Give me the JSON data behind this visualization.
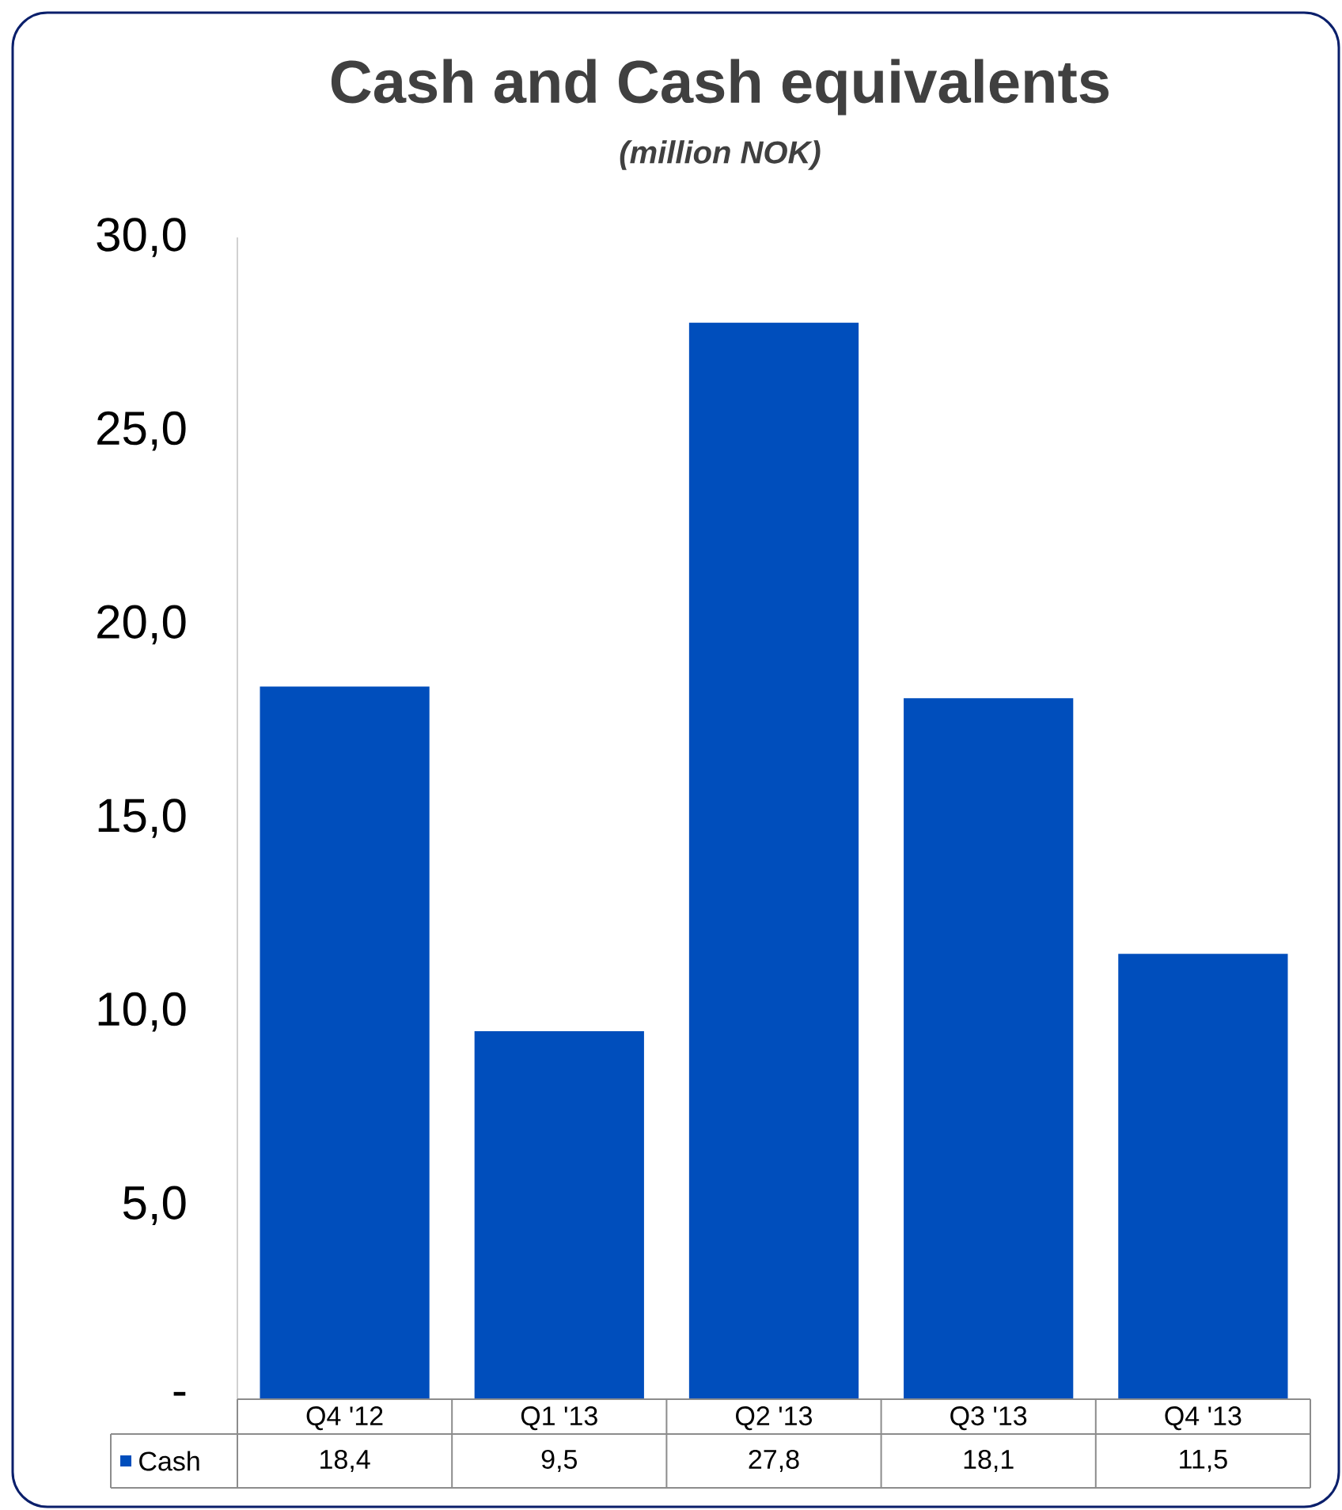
{
  "chart_data": {
    "type": "bar",
    "title": "Cash and Cash equivalents",
    "subtitle": "(million NOK)",
    "categories": [
      "Q4 '12",
      "Q1 '13",
      "Q2 '13",
      "Q3 '13",
      "Q4 '13"
    ],
    "series": [
      {
        "name": "Cash",
        "color": "#004ebc",
        "values": [
          18.4,
          9.5,
          27.8,
          18.1,
          11.5
        ],
        "value_labels": [
          "18,4",
          "9,5",
          "27,8",
          "18,1",
          "11,5"
        ]
      }
    ],
    "ylim": [
      0,
      30
    ],
    "yticks": [
      {
        "value": 0,
        "label": "-"
      },
      {
        "value": 5,
        "label": "5,0"
      },
      {
        "value": 10,
        "label": "10,0"
      },
      {
        "value": 15,
        "label": "15,0"
      },
      {
        "value": 20,
        "label": "20,0"
      },
      {
        "value": 25,
        "label": "25,0"
      },
      {
        "value": 30,
        "label": "30,0"
      }
    ],
    "legend": "bottom"
  }
}
